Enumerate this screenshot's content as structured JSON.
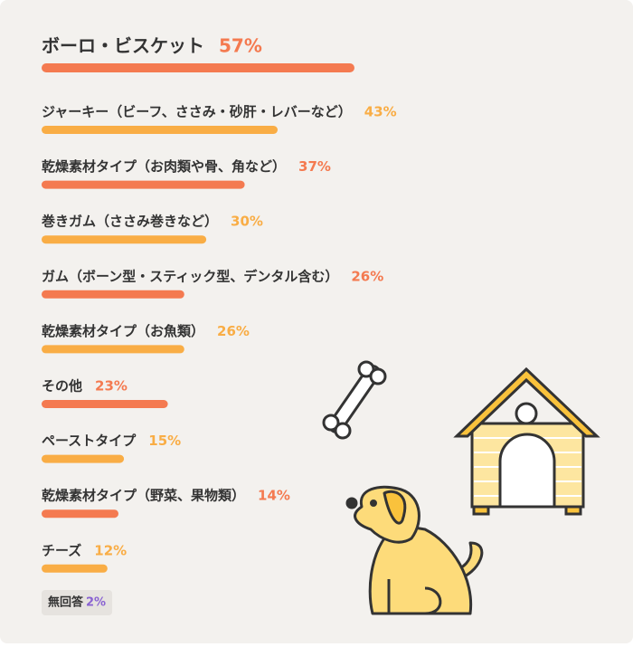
{
  "chart_data": {
    "type": "bar",
    "categories": [
      "ボーロ・ビスケット",
      "ジャーキー（ビーフ、ささみ・砂肝・レバーなど）",
      "乾燥素材タイプ（お肉類や骨、角など）",
      "巻きガム（ささみ巻きなど）",
      "ガム（ボーン型・スティック型、デンタル含む）",
      "乾燥素材タイプ（お魚類）",
      "その他",
      "ペーストタイプ",
      "乾燥素材タイプ（野菜、果物類）",
      "チーズ"
    ],
    "values": [
      57,
      43,
      37,
      30,
      26,
      26,
      23,
      15,
      14,
      12
    ],
    "value_labels": [
      "57%",
      "43%",
      "37%",
      "30%",
      "26%",
      "26%",
      "23%",
      "15%",
      "14%",
      "12%"
    ],
    "colors": [
      "#f47a50",
      "#f9ad45",
      "#f47a50",
      "#f9ad45",
      "#f47a50",
      "#f9ad45",
      "#f47a50",
      "#f9ad45",
      "#f47a50",
      "#f9ad45"
    ],
    "xlim": [
      0,
      100
    ],
    "no_answer": {
      "label": "無回答",
      "value": 2,
      "value_label": "2%",
      "color": "#8a63d2"
    }
  }
}
